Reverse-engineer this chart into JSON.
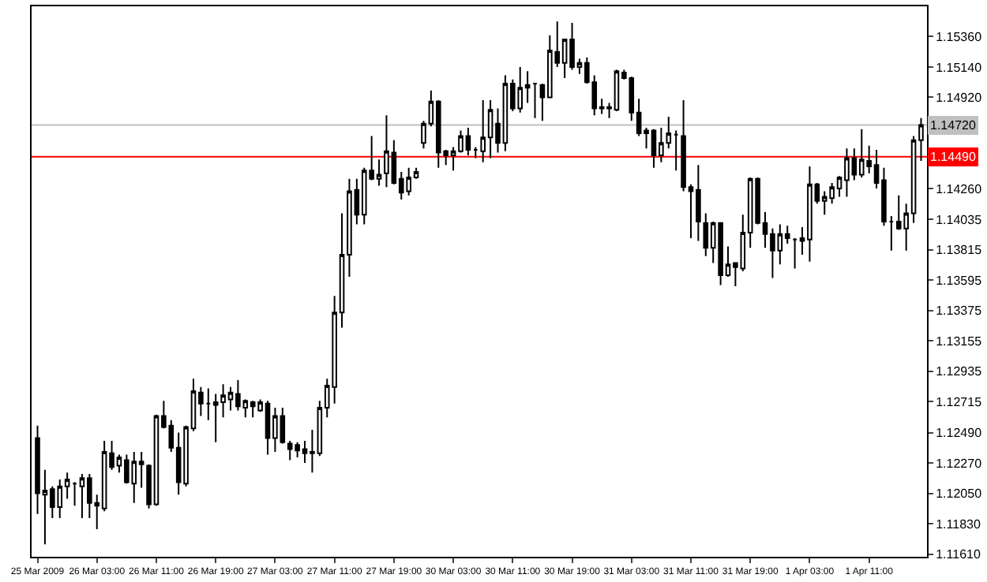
{
  "chart_data": {
    "type": "candlestick",
    "categories": [
      "25 Mar 2009",
      null,
      null,
      null,
      null,
      null,
      null,
      null,
      "26 Mar 03:00",
      null,
      null,
      null,
      null,
      null,
      null,
      null,
      "26 Mar 11:00",
      null,
      null,
      null,
      null,
      null,
      null,
      null,
      "26 Mar 19:00",
      null,
      null,
      null,
      null,
      null,
      null,
      null,
      "27 Mar 03:00",
      null,
      null,
      null,
      null,
      null,
      null,
      null,
      "27 Mar 11:00",
      null,
      null,
      null,
      null,
      null,
      null,
      null,
      "27 Mar 19:00",
      null,
      null,
      null,
      null,
      null,
      null,
      null,
      "30 Mar 03:00",
      null,
      null,
      null,
      null,
      null,
      null,
      null,
      "30 Mar 11:00",
      null,
      null,
      null,
      null,
      null,
      null,
      null,
      "30 Mar 19:00",
      null,
      null,
      null,
      null,
      null,
      null,
      null,
      "31 Mar 03:00",
      null,
      null,
      null,
      null,
      null,
      null,
      null,
      "31 Mar 11:00",
      null,
      null,
      null,
      null,
      null,
      null,
      null,
      "31 Mar 19:00",
      null,
      null,
      null,
      null,
      null,
      null,
      null,
      "1 Apr 03:00",
      null,
      null,
      null,
      null,
      null,
      null,
      null,
      "1 Apr 11:00",
      null,
      null,
      null,
      null,
      null,
      null,
      null
    ],
    "ohlc": [
      [
        1.1245,
        1.1254,
        1.119,
        1.1205
      ],
      [
        1.1204,
        1.1222,
        1.1168,
        1.1207
      ],
      [
        1.1208,
        1.121,
        1.1187,
        1.1195
      ],
      [
        1.1195,
        1.1215,
        1.1187,
        1.121
      ],
      [
        1.121,
        1.122,
        1.1201,
        1.1215
      ],
      [
        1.1212,
        1.1213,
        1.1196,
        1.1212
      ],
      [
        1.121,
        1.1219,
        1.1187,
        1.1216
      ],
      [
        1.1216,
        1.1219,
        1.1187,
        1.1198
      ],
      [
        1.1198,
        1.1204,
        1.1179,
        1.1196
      ],
      [
        1.1194,
        1.1243,
        1.1192,
        1.1235
      ],
      [
        1.1234,
        1.1243,
        1.1222,
        1.1224
      ],
      [
        1.1225,
        1.1233,
        1.122,
        1.1231
      ],
      [
        1.1229,
        1.1233,
        1.1212,
        1.1213
      ],
      [
        1.1212,
        1.1235,
        1.1198,
        1.1228
      ],
      [
        1.1228,
        1.1235,
        1.1209,
        1.1226
      ],
      [
        1.1225,
        1.1226,
        1.1194,
        1.1197
      ],
      [
        1.1197,
        1.1262,
        1.1196,
        1.1261
      ],
      [
        1.1261,
        1.1272,
        1.1252,
        1.1253
      ],
      [
        1.1254,
        1.1258,
        1.1235,
        1.1238
      ],
      [
        1.1238,
        1.1249,
        1.1204,
        1.1213
      ],
      [
        1.1212,
        1.1254,
        1.121,
        1.1253
      ],
      [
        1.1252,
        1.1288,
        1.125,
        1.1279
      ],
      [
        1.1278,
        1.1282,
        1.1261,
        1.127
      ],
      [
        1.127,
        1.1281,
        1.1258,
        1.127
      ],
      [
        1.1269,
        1.1277,
        1.1242,
        1.1271
      ],
      [
        1.1271,
        1.1284,
        1.126,
        1.1276
      ],
      [
        1.1273,
        1.1282,
        1.1265,
        1.1278
      ],
      [
        1.1277,
        1.1287,
        1.1265,
        1.1268
      ],
      [
        1.1267,
        1.1273,
        1.126,
        1.1272
      ],
      [
        1.1271,
        1.1272,
        1.126,
        1.1268
      ],
      [
        1.1265,
        1.1273,
        1.1264,
        1.1271
      ],
      [
        1.127,
        1.1272,
        1.1233,
        1.1245
      ],
      [
        1.1245,
        1.1267,
        1.1235,
        1.1261
      ],
      [
        1.1261,
        1.1267,
        1.1241,
        1.1242
      ],
      [
        1.1241,
        1.1243,
        1.1229,
        1.1237
      ],
      [
        1.124,
        1.1242,
        1.1231,
        1.1236
      ],
      [
        1.1237,
        1.1243,
        1.1227,
        1.1234
      ],
      [
        1.1234,
        1.1251,
        1.122,
        1.1235
      ],
      [
        1.1234,
        1.1272,
        1.1232,
        1.1267
      ],
      [
        1.1267,
        1.1288,
        1.126,
        1.1283
      ],
      [
        1.1282,
        1.1348,
        1.127,
        1.1336
      ],
      [
        1.1336,
        1.1408,
        1.1325,
        1.1378
      ],
      [
        1.1378,
        1.1433,
        1.1362,
        1.1424
      ],
      [
        1.1425,
        1.1433,
        1.14,
        1.1407
      ],
      [
        1.1407,
        1.1441,
        1.14,
        1.1439
      ],
      [
        1.1439,
        1.1464,
        1.1432,
        1.1433
      ],
      [
        1.1433,
        1.1447,
        1.1428,
        1.1436
      ],
      [
        1.1437,
        1.1479,
        1.1427,
        1.1453
      ],
      [
        1.1452,
        1.1461,
        1.1429,
        1.143
      ],
      [
        1.1433,
        1.1438,
        1.1418,
        1.1423
      ],
      [
        1.1424,
        1.1441,
        1.1421,
        1.1434
      ],
      [
        1.1434,
        1.1441,
        1.1433,
        1.1438
      ],
      [
        1.1459,
        1.1475,
        1.1455,
        1.1473
      ],
      [
        1.1473,
        1.1497,
        1.1471,
        1.1489
      ],
      [
        1.1489,
        1.149,
        1.1441,
        1.1452
      ],
      [
        1.1453,
        1.1454,
        1.1443,
        1.145
      ],
      [
        1.145,
        1.1456,
        1.1439,
        1.1453
      ],
      [
        1.1453,
        1.1468,
        1.1452,
        1.1464
      ],
      [
        1.1464,
        1.147,
        1.145,
        1.1454
      ],
      [
        1.1454,
        1.1456,
        1.1448,
        1.1454
      ],
      [
        1.1453,
        1.149,
        1.1445,
        1.1463
      ],
      [
        1.1463,
        1.149,
        1.1448,
        1.1483
      ],
      [
        1.1473,
        1.1484,
        1.1452,
        1.1459
      ],
      [
        1.1459,
        1.1508,
        1.1453,
        1.1502
      ],
      [
        1.1502,
        1.1505,
        1.1482,
        1.1484
      ],
      [
        1.1484,
        1.1514,
        1.1481,
        1.1499
      ],
      [
        1.1499,
        1.1511,
        1.1488,
        1.1501
      ],
      [
        1.1502,
        1.1502,
        1.1477,
        1.1502
      ],
      [
        1.1501,
        1.1502,
        1.1475,
        1.1492
      ],
      [
        1.1492,
        1.1537,
        1.1492,
        1.1526
      ],
      [
        1.1525,
        1.1547,
        1.1514,
        1.1517
      ],
      [
        1.1517,
        1.1534,
        1.1506,
        1.1534
      ],
      [
        1.1534,
        1.1546,
        1.1512,
        1.1514
      ],
      [
        1.1514,
        1.152,
        1.1509,
        1.1517
      ],
      [
        1.1517,
        1.1521,
        1.1502,
        1.1503
      ],
      [
        1.1503,
        1.1508,
        1.1479,
        1.1484
      ],
      [
        1.1484,
        1.1491,
        1.148,
        1.1485
      ],
      [
        1.1485,
        1.1488,
        1.1477,
        1.1484
      ],
      [
        1.1483,
        1.1512,
        1.1482,
        1.1511
      ],
      [
        1.151,
        1.1512,
        1.1505,
        1.1506
      ],
      [
        1.1506,
        1.1507,
        1.1475,
        1.1481
      ],
      [
        1.1481,
        1.1491,
        1.1464,
        1.1466
      ],
      [
        1.1468,
        1.147,
        1.1455,
        1.1466
      ],
      [
        1.1468,
        1.1469,
        1.1441,
        1.145
      ],
      [
        1.145,
        1.147,
        1.1445,
        1.1459
      ],
      [
        1.1459,
        1.1478,
        1.1455,
        1.1466
      ],
      [
        1.1465,
        1.1468,
        1.1439,
        1.1465
      ],
      [
        1.1464,
        1.149,
        1.1424,
        1.1427
      ],
      [
        1.1427,
        1.1429,
        1.139,
        1.1424
      ],
      [
        1.1425,
        1.1443,
        1.1388,
        1.1402
      ],
      [
        1.1401,
        1.1408,
        1.1377,
        1.1383
      ],
      [
        1.1383,
        1.1402,
        1.1372,
        1.1401
      ],
      [
        1.1401,
        1.1401,
        1.1356,
        1.1363
      ],
      [
        1.1363,
        1.1384,
        1.1362,
        1.1371
      ],
      [
        1.1372,
        1.1372,
        1.1355,
        1.1369
      ],
      [
        1.1368,
        1.1407,
        1.1366,
        1.1394
      ],
      [
        1.1394,
        1.1434,
        1.1383,
        1.1433
      ],
      [
        1.1433,
        1.1434,
        1.14,
        1.1401
      ],
      [
        1.1401,
        1.1409,
        1.1383,
        1.1393
      ],
      [
        1.1393,
        1.1397,
        1.1361,
        1.1381
      ],
      [
        1.1381,
        1.14,
        1.1371,
        1.1393
      ],
      [
        1.1393,
        1.1399,
        1.1386,
        1.139
      ],
      [
        1.1389,
        1.139,
        1.1368,
        1.1389
      ],
      [
        1.1388,
        1.1398,
        1.1378,
        1.139
      ],
      [
        1.1389,
        1.1442,
        1.1373,
        1.1429
      ],
      [
        1.1429,
        1.143,
        1.1415,
        1.1417
      ],
      [
        1.1417,
        1.1424,
        1.1407,
        1.142
      ],
      [
        1.1419,
        1.143,
        1.1415,
        1.1427
      ],
      [
        1.1426,
        1.1435,
        1.142,
        1.1434
      ],
      [
        1.1432,
        1.1455,
        1.142,
        1.1448
      ],
      [
        1.1448,
        1.1455,
        1.1432,
        1.1436
      ],
      [
        1.1436,
        1.1469,
        1.1434,
        1.1447
      ],
      [
        1.1446,
        1.1457,
        1.1437,
        1.1442
      ],
      [
        1.1443,
        1.1454,
        1.1426,
        1.143
      ],
      [
        1.1432,
        1.1441,
        1.1399,
        1.1402
      ],
      [
        1.1402,
        1.1406,
        1.1381,
        1.1402
      ],
      [
        1.1402,
        1.1421,
        1.1396,
        1.1397
      ],
      [
        1.1397,
        1.1415,
        1.1381,
        1.1408
      ],
      [
        1.1408,
        1.1464,
        1.1401,
        1.1461
      ],
      [
        1.1461,
        1.1477,
        1.1446,
        1.1472
      ]
    ],
    "ylim": [
      1.1159,
      1.1558
    ],
    "yticks": [
      {
        "value": 1.1536,
        "label": "1.15360"
      },
      {
        "value": 1.1514,
        "label": "1.15140"
      },
      {
        "value": 1.1492,
        "label": "1.14920"
      },
      {
        "value": 1.1426,
        "label": "1.14260"
      },
      {
        "value": 1.14035,
        "label": "1.14035"
      },
      {
        "value": 1.13815,
        "label": "1.13815"
      },
      {
        "value": 1.13595,
        "label": "1.13595"
      },
      {
        "value": 1.13375,
        "label": "1.13375"
      },
      {
        "value": 1.13155,
        "label": "1.13155"
      },
      {
        "value": 1.12935,
        "label": "1.12935"
      },
      {
        "value": 1.12715,
        "label": "1.12715"
      },
      {
        "value": 1.1249,
        "label": "1.12490"
      },
      {
        "value": 1.1227,
        "label": "1.12270"
      },
      {
        "value": 1.1205,
        "label": "1.12050"
      },
      {
        "value": 1.1183,
        "label": "1.11830"
      },
      {
        "value": 1.1161,
        "label": "1.11610"
      }
    ],
    "ref_lines": [
      {
        "axis": "y",
        "value": 1.1472,
        "label": "1.14720",
        "color": "#c0c0c0"
      },
      {
        "axis": "y",
        "value": 1.1449,
        "label": "1.14490",
        "color": "#ff0000"
      }
    ],
    "grid": false
  }
}
